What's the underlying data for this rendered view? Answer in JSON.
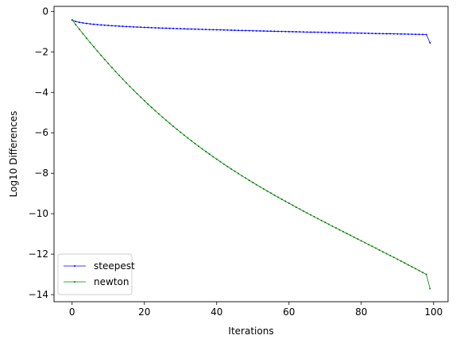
{
  "chart_data": {
    "type": "line",
    "title": "",
    "xlabel": "Iterations",
    "ylabel": "Log10 Differences",
    "xlim": [
      -5,
      104
    ],
    "ylim": [
      -14.35,
      0.25
    ],
    "xticks": [
      0,
      20,
      40,
      60,
      80,
      100
    ],
    "yticks": [
      0,
      -2,
      -4,
      -6,
      -8,
      -10,
      -12,
      -14
    ],
    "grid": false,
    "legend": "lower-left",
    "series": [
      {
        "name": "steepest",
        "color": "#0000ff",
        "marker": "dot",
        "x": [
          0,
          1,
          2,
          3,
          4,
          5,
          6,
          7,
          8,
          9,
          10,
          11,
          12,
          13,
          14,
          15,
          16,
          17,
          18,
          19,
          20,
          21,
          22,
          23,
          24,
          25,
          26,
          27,
          28,
          29,
          30,
          31,
          32,
          33,
          34,
          35,
          36,
          37,
          38,
          39,
          40,
          41,
          42,
          43,
          44,
          45,
          46,
          47,
          48,
          49,
          50,
          51,
          52,
          53,
          54,
          55,
          56,
          57,
          58,
          59,
          60,
          61,
          62,
          63,
          64,
          65,
          66,
          67,
          68,
          69,
          70,
          71,
          72,
          73,
          74,
          75,
          76,
          77,
          78,
          79,
          80,
          81,
          82,
          83,
          84,
          85,
          86,
          87,
          88,
          89,
          90,
          91,
          92,
          93,
          94,
          95,
          96,
          97,
          98,
          99
        ],
        "y": [
          -0.42,
          -0.496,
          -0.539,
          -0.57,
          -0.596,
          -0.617,
          -0.636,
          -0.652,
          -0.667,
          -0.681,
          -0.694,
          -0.706,
          -0.717,
          -0.728,
          -0.738,
          -0.747,
          -0.756,
          -0.765,
          -0.773,
          -0.781,
          -0.789,
          -0.797,
          -0.804,
          -0.811,
          -0.818,
          -0.824,
          -0.831,
          -0.837,
          -0.843,
          -0.849,
          -0.855,
          -0.861,
          -0.867,
          -0.872,
          -0.878,
          -0.883,
          -0.889,
          -0.894,
          -0.899,
          -0.904,
          -0.909,
          -0.914,
          -0.919,
          -0.924,
          -0.929,
          -0.934,
          -0.938,
          -0.943,
          -0.948,
          -0.952,
          -0.957,
          -0.961,
          -0.965,
          -0.97,
          -0.974,
          -0.978,
          -0.983,
          -0.987,
          -0.991,
          -0.995,
          -0.999,
          -1.003,
          -1.008,
          -1.012,
          -1.016,
          -1.02,
          -1.024,
          -1.028,
          -1.031,
          -1.035,
          -1.039,
          -1.043,
          -1.047,
          -1.051,
          -1.055,
          -1.058,
          -1.062,
          -1.066,
          -1.07,
          -1.073,
          -1.077,
          -1.081,
          -1.084,
          -1.088,
          -1.092,
          -1.095,
          -1.099,
          -1.102,
          -1.106,
          -1.11,
          -1.113,
          -1.117,
          -1.12,
          -1.124,
          -1.127,
          -1.131,
          -1.134,
          -1.137,
          -1.141,
          -1.55
        ]
      },
      {
        "name": "newton",
        "color": "#008000",
        "marker": "dot",
        "x": [
          0,
          1,
          2,
          3,
          4,
          5,
          6,
          7,
          8,
          9,
          10,
          11,
          12,
          13,
          14,
          15,
          16,
          17,
          18,
          19,
          20,
          21,
          22,
          23,
          24,
          25,
          26,
          27,
          28,
          29,
          30,
          31,
          32,
          33,
          34,
          35,
          36,
          37,
          38,
          39,
          40,
          41,
          42,
          43,
          44,
          45,
          46,
          47,
          48,
          49,
          50,
          51,
          52,
          53,
          54,
          55,
          56,
          57,
          58,
          59,
          60,
          61,
          62,
          63,
          64,
          65,
          66,
          67,
          68,
          69,
          70,
          71,
          72,
          73,
          74,
          75,
          76,
          77,
          78,
          79,
          80,
          81,
          82,
          83,
          84,
          85,
          86,
          87,
          88,
          89,
          90,
          91,
          92,
          93,
          94,
          95,
          96,
          97,
          98,
          99
        ],
        "y": [
          -0.42,
          -0.651,
          -0.878,
          -1.102,
          -1.323,
          -1.54,
          -1.754,
          -1.964,
          -2.171,
          -2.375,
          -2.576,
          -2.773,
          -2.968,
          -3.159,
          -3.347,
          -3.532,
          -3.714,
          -3.893,
          -4.069,
          -4.243,
          -4.413,
          -4.581,
          -4.746,
          -4.908,
          -5.068,
          -5.225,
          -5.38,
          -5.532,
          -5.682,
          -5.829,
          -5.974,
          -6.116,
          -6.257,
          -6.395,
          -6.531,
          -6.665,
          -6.797,
          -6.927,
          -7.055,
          -7.181,
          -7.305,
          -7.428,
          -7.548,
          -7.668,
          -7.785,
          -7.901,
          -8.015,
          -8.128,
          -8.239,
          -8.349,
          -8.458,
          -8.566,
          -8.672,
          -8.777,
          -8.881,
          -8.984,
          -9.086,
          -9.187,
          -9.287,
          -9.386,
          -9.484,
          -9.582,
          -9.679,
          -9.775,
          -9.87,
          -9.965,
          -10.059,
          -10.153,
          -10.246,
          -10.339,
          -10.431,
          -10.523,
          -10.615,
          -10.706,
          -10.797,
          -10.888,
          -10.979,
          -11.069,
          -11.16,
          -11.25,
          -11.341,
          -11.431,
          -11.522,
          -11.612,
          -11.703,
          -11.794,
          -11.885,
          -11.976,
          -12.067,
          -12.159,
          -12.251,
          -12.343,
          -12.436,
          -12.529,
          -12.623,
          -12.717,
          -12.812,
          -12.907,
          -13.003,
          -13.7
        ]
      }
    ]
  }
}
